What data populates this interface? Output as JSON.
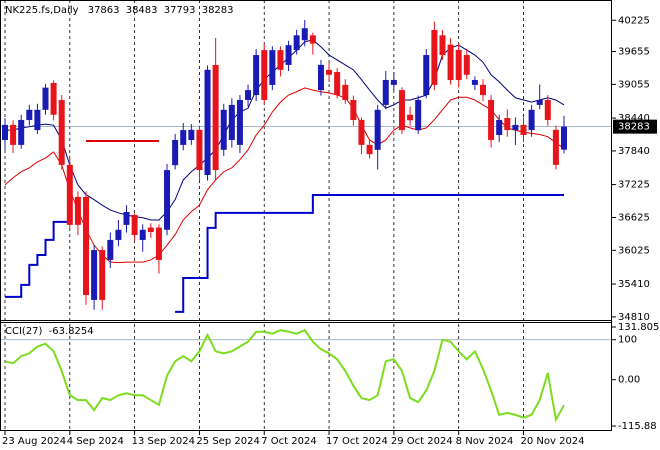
{
  "chart_data": {
    "type": "candlestick",
    "title": "NK225.fs,Daily",
    "categories": [
      "23 Aug 2024",
      null,
      null,
      null,
      null,
      null,
      null,
      null,
      "4 Sep 2024",
      null,
      null,
      null,
      null,
      null,
      null,
      null,
      "13 Sep 2024",
      null,
      null,
      null,
      null,
      null,
      null,
      null,
      "25 Sep 2024",
      null,
      null,
      null,
      null,
      null,
      null,
      null,
      "7 Oct 2024",
      null,
      null,
      null,
      null,
      null,
      null,
      null,
      "17 Oct 2024",
      null,
      null,
      null,
      null,
      null,
      null,
      null,
      "29 Oct 2024",
      null,
      null,
      null,
      null,
      null,
      null,
      null,
      "8 Nov 2024",
      null,
      null,
      null,
      null,
      null,
      null,
      null,
      "20 Nov 2024",
      null,
      null,
      null,
      null,
      null
    ],
    "open": [
      38040,
      38315,
      37950,
      38405,
      38220,
      38590,
      39080,
      38770,
      37585,
      37000,
      37000,
      35120,
      36030,
      35850,
      36215,
      36490,
      36670,
      36215,
      36440,
      36440,
      36400,
      37580,
      37950,
      38040,
      38225,
      37400,
      39410,
      37860,
      38040,
      37950,
      38770,
      38860,
      39680,
      39045,
      39680,
      39410,
      39680,
      39860,
      39950,
      38950,
      39320,
      39280,
      39045,
      38770,
      38405,
      37950,
      37860,
      38680,
      39045,
      38950,
      38500,
      38220,
      38860,
      40048,
      39950,
      39780,
      39683,
      39590,
      39045,
      39045,
      38770,
      38130,
      38440,
      38220,
      38315,
      38220,
      38680,
      38770,
      38225,
      37863
    ],
    "high": [
      38440,
      38400,
      38500,
      38680,
      38700,
      39060,
      39130,
      38860,
      37700,
      37100,
      37100,
      36120,
      36100,
      36350,
      36580,
      36850,
      36700,
      36500,
      36520,
      36500,
      37600,
      38150,
      38350,
      38330,
      38300,
      39400,
      39900,
      38700,
      38800,
      38860,
      39050,
      39700,
      39800,
      39750,
      39750,
      39850,
      40050,
      40230,
      40000,
      39500,
      39450,
      39350,
      39150,
      38850,
      38450,
      38050,
      38680,
      39300,
      39280,
      39000,
      38650,
      38850,
      39700,
      40200,
      40050,
      39900,
      39800,
      39700,
      39200,
      39150,
      38860,
      38500,
      38600,
      38450,
      38450,
      38680,
      39050,
      38860,
      38300,
      38483
    ],
    "low": [
      37860,
      37800,
      37880,
      38300,
      38150,
      38500,
      38400,
      37500,
      36400,
      36300,
      35030,
      34940,
      34940,
      35700,
      36100,
      36350,
      36200,
      36000,
      36250,
      35600,
      36300,
      37500,
      37850,
      37950,
      37300,
      37300,
      37300,
      37750,
      37900,
      37800,
      38650,
      38750,
      38700,
      38950,
      39200,
      39300,
      39600,
      39750,
      39600,
      38850,
      39100,
      38800,
      38700,
      38300,
      37780,
      37700,
      37500,
      38600,
      38950,
      38150,
      38300,
      38150,
      38800,
      38950,
      39500,
      39050,
      39000,
      39150,
      38950,
      38750,
      37900,
      38000,
      38100,
      37950,
      38000,
      38100,
      38600,
      38300,
      37500,
      37793
    ],
    "close": [
      38315,
      37950,
      38405,
      38590,
      38590,
      38995,
      38500,
      37585,
      36490,
      36490,
      35210,
      36030,
      35120,
      36215,
      36400,
      36725,
      36305,
      36400,
      36360,
      35850,
      37490,
      38040,
      38220,
      38225,
      37490,
      39320,
      37490,
      38590,
      38680,
      38770,
      38950,
      39590,
      38770,
      39680,
      39320,
      39770,
      39950,
      40080,
      39800,
      39410,
      39230,
      38860,
      38770,
      38405,
      37950,
      37780,
      38590,
      39135,
      39135,
      38220,
      38400,
      38770,
      39590,
      39045,
      39590,
      39135,
      39135,
      39230,
      39135,
      38860,
      38040,
      38405,
      38220,
      38315,
      38130,
      38590,
      38770,
      38405,
      37585,
      38283
    ],
    "up_color": "#1a1ab4",
    "down_color": "#e8141c",
    "overlays": [
      {
        "color": "#000080",
        "values": [
          38220,
          38220,
          38260,
          38280,
          38310,
          38330,
          38310,
          38040,
          37580,
          37220,
          37040,
          36950,
          36850,
          36760,
          36710,
          36670,
          36640,
          36620,
          36580,
          36580,
          36730,
          36950,
          37310,
          37460,
          37580,
          37710,
          37860,
          38130,
          38410,
          38550,
          38620,
          38950,
          39140,
          39280,
          39410,
          39540,
          39680,
          39830,
          39870,
          39740,
          39590,
          39500,
          39410,
          39320,
          39140,
          38950,
          38770,
          38620,
          38680,
          38770,
          38770,
          38810,
          38860,
          39140,
          39590,
          39720,
          39770,
          39680,
          39590,
          39460,
          39230,
          39100,
          38950,
          38810,
          38770,
          38730,
          38770,
          38810,
          38770,
          38680
        ]
      },
      {
        "color": "#e00000",
        "values": [
          37220,
          37350,
          37460,
          37530,
          37640,
          37710,
          37820,
          37580,
          37130,
          36760,
          36400,
          36120,
          35940,
          35810,
          35800,
          35810,
          35810,
          35810,
          35850,
          35940,
          36120,
          36310,
          36580,
          36730,
          36850,
          37130,
          37310,
          37460,
          37530,
          37680,
          37860,
          38130,
          38310,
          38550,
          38730,
          38860,
          38920,
          38990,
          38950,
          38920,
          38900,
          38860,
          38810,
          38620,
          38310,
          38040,
          37950,
          38040,
          38220,
          38310,
          38260,
          38220,
          38260,
          38410,
          38590,
          38770,
          38820,
          38820,
          38770,
          38680,
          38590,
          38410,
          38260,
          38220,
          38180,
          38160,
          38140,
          38100,
          37990,
          37880
        ]
      },
      {
        "color": "#0000cc",
        "step": true,
        "values": [
          35175,
          35175,
          35394,
          35759,
          35941,
          36215,
          36544,
          36544,
          36544,
          null,
          null,
          null,
          null,
          null,
          null,
          null,
          null,
          null,
          null,
          null,
          null,
          34901,
          35521,
          35521,
          35521,
          36434,
          36708,
          36708,
          36708,
          36708,
          36708,
          36708,
          36708,
          36708,
          36708,
          36708,
          36708,
          36708,
          37036,
          37036,
          37036,
          37036,
          37036,
          37036,
          37036,
          37036,
          37036,
          37036,
          37036,
          37036,
          37036,
          37036,
          37036,
          37036,
          37036,
          37036,
          37036,
          37036,
          37036,
          37036,
          37036,
          37036,
          37036,
          37036,
          37036,
          37036,
          37036,
          37036,
          37036,
          37036
        ]
      },
      {
        "color": "#e00000",
        "step": true,
        "values": [
          null,
          null,
          null,
          null,
          null,
          null,
          null,
          null,
          null,
          null,
          38022,
          38022,
          38022,
          38022,
          38022,
          38022,
          38022,
          38022,
          38022,
          38022,
          null,
          null,
          null,
          null,
          null,
          null,
          null,
          null,
          null,
          null,
          null,
          null,
          null,
          null,
          null,
          null,
          null,
          null,
          null,
          null,
          null,
          null,
          null,
          null,
          null,
          null,
          null,
          null,
          null,
          null,
          null,
          null,
          null,
          null,
          null,
          null,
          null,
          null,
          null,
          null,
          null,
          null,
          null,
          null,
          null,
          null,
          null,
          null,
          null,
          null
        ]
      }
    ],
    "ylim": [
      34790,
      40540
    ],
    "yticks": [
      34810,
      35410,
      36025,
      36625,
      37225,
      37840,
      38440,
      39055,
      39655,
      40225
    ],
    "current_price_line": true,
    "grid": true,
    "indicator": {
      "type": "line",
      "title": "CCI(27)",
      "color": "#7ddc1f",
      "values": [
        46,
        41,
        59,
        66,
        83,
        90,
        71,
        22,
        -39,
        -51,
        -51,
        -76,
        -46,
        -51,
        -39,
        -34,
        -39,
        -39,
        -51,
        -63,
        10,
        46,
        59,
        46,
        71,
        112,
        71,
        66,
        71,
        83,
        95,
        120,
        120,
        115,
        124,
        120,
        115,
        124,
        95,
        76,
        66,
        51,
        22,
        -15,
        -46,
        -51,
        -39,
        46,
        51,
        22,
        -46,
        -56,
        -27,
        22,
        100,
        95,
        71,
        51,
        71,
        27,
        -27,
        -88,
        -83,
        -88,
        -95,
        -88,
        -51,
        17,
        -100,
        -63.8254
      ],
      "ylim": [
        -115.88,
        131.805
      ],
      "yticks": [
        -115.88,
        {
          "value": 0,
          "label": "0.00"
        },
        100,
        131.805
      ]
    }
  }
}
